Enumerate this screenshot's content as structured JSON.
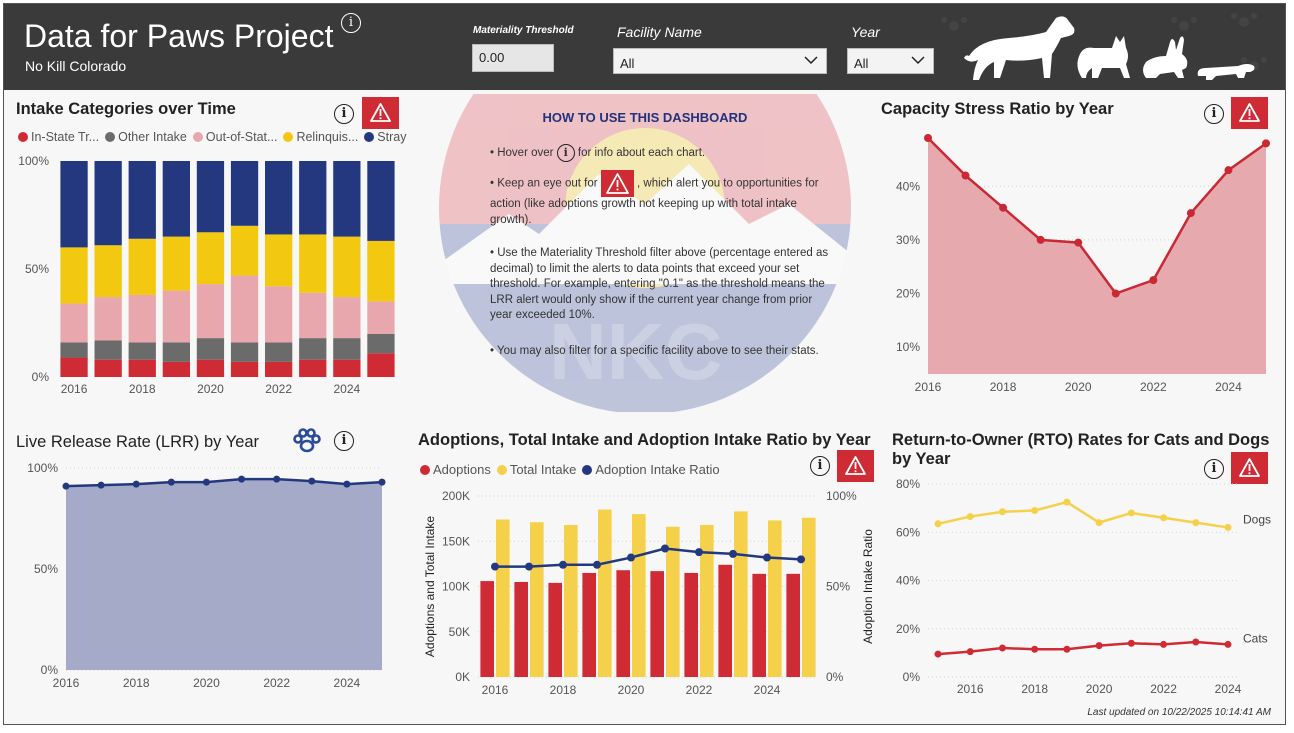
{
  "header": {
    "title": "Data for Paws Project",
    "subtitle": "No Kill Colorado",
    "info_icon": "info-icon",
    "filters": {
      "threshold_label": "Materiality Threshold",
      "threshold_value": "0.00",
      "facility_label": "Facility Name",
      "facility_value": "All",
      "year_label": "Year",
      "year_value": "All"
    }
  },
  "colors": {
    "red": "#cf2b34",
    "gray": "#6b6b6b",
    "pink": "#e8a7ad",
    "yellow": "#f2c811",
    "navy": "#23387f",
    "lrr_fill": "#a5aac9",
    "rto_yellow": "#f5d04a",
    "capacity_fill": "#e6a9ad"
  },
  "intake": {
    "title": "Intake Categories over Time",
    "legend": [
      "In-State Tr...",
      "Other Intake",
      "Out-of-Stat...",
      "Relinquis...",
      "Stray"
    ]
  },
  "capacity": {
    "title": "Capacity Stress Ratio by Year"
  },
  "lrr": {
    "title": "Live Release Rate (LRR) by Year"
  },
  "adoptions": {
    "title": "Adoptions, Total Intake and Adoption Intake Ratio by Year",
    "legend": [
      "Adoptions",
      "Total Intake",
      "Adoption Intake Ratio"
    ],
    "ylabel_left": "Adoptions and Total Intake",
    "ylabel_right": "Adoption Intake Ratio"
  },
  "rto": {
    "title_line1": "Return-to-Owner (RTO) Rates for Cats and Dogs",
    "title_line2": "by Year",
    "dogs_label": "Dogs",
    "cats_label": "Cats"
  },
  "howto": {
    "title": "HOW TO USE THIS DASHBOARD",
    "tip1_a": "• Hover over",
    "tip1_b": "for info about each chart.",
    "tip2_a": "• Keep an eye out for",
    "tip2_b": ", which alert you to opportunities for action (like adoptions growth not keeping up with total intake growth).",
    "tip3": "• Use the Materiality Threshold filter above (percentage entered as decimal) to limit the alerts to data points that exceed your set threshold. For example, entering \"0.1\" as the threshold means the LRR alert would only show if the current year change from prior year exceeded 10%.",
    "tip4": "• You may also filter for a specific facility above to see their stats."
  },
  "footer": {
    "updated": "Last updated on 10/22/2025 10:14:41 AM"
  },
  "chart_data": [
    {
      "id": "intake",
      "type": "bar",
      "stacked": "100%",
      "title": "Intake Categories over Time",
      "x": [
        2016,
        2017,
        2018,
        2019,
        2020,
        2021,
        2022,
        2023,
        2024,
        2025
      ],
      "x_ticks": [
        "2016",
        "2018",
        "2020",
        "2022",
        "2024"
      ],
      "y_ticks": [
        "0%",
        "50%",
        "100%"
      ],
      "ylim": [
        0,
        1
      ],
      "series": [
        {
          "name": "In-State Tr...",
          "color": "#cf2b34",
          "values": [
            0.09,
            0.08,
            0.08,
            0.07,
            0.08,
            0.07,
            0.07,
            0.08,
            0.08,
            0.11
          ]
        },
        {
          "name": "Other Intake",
          "color": "#6b6b6b",
          "values": [
            0.07,
            0.09,
            0.08,
            0.09,
            0.1,
            0.09,
            0.09,
            0.1,
            0.1,
            0.09
          ]
        },
        {
          "name": "Out-of-Stat...",
          "color": "#e8a7ad",
          "values": [
            0.18,
            0.2,
            0.22,
            0.24,
            0.25,
            0.31,
            0.26,
            0.21,
            0.19,
            0.15
          ]
        },
        {
          "name": "Relinquis...",
          "color": "#f2c811",
          "values": [
            0.26,
            0.24,
            0.26,
            0.25,
            0.24,
            0.23,
            0.24,
            0.27,
            0.28,
            0.28
          ]
        },
        {
          "name": "Stray",
          "color": "#23387f",
          "values": [
            0.4,
            0.39,
            0.36,
            0.35,
            0.33,
            0.3,
            0.34,
            0.34,
            0.35,
            0.37
          ]
        }
      ]
    },
    {
      "id": "capacity",
      "type": "area",
      "title": "Capacity Stress Ratio by Year",
      "x": [
        2016,
        2017,
        2018,
        2019,
        2020,
        2021,
        2022,
        2023,
        2024,
        2025
      ],
      "values": [
        0.49,
        0.42,
        0.36,
        0.3,
        0.295,
        0.2,
        0.225,
        0.35,
        0.43,
        0.48
      ],
      "x_ticks": [
        "2016",
        "2018",
        "2020",
        "2022",
        "2024"
      ],
      "y_ticks": [
        "10%",
        "20%",
        "30%",
        "40%"
      ],
      "ylim": [
        0.05,
        0.49
      ]
    },
    {
      "id": "lrr",
      "type": "area",
      "title": "Live Release Rate (LRR) by Year",
      "x": [
        2016,
        2017,
        2018,
        2019,
        2020,
        2021,
        2022,
        2023,
        2024,
        2025
      ],
      "values": [
        0.91,
        0.915,
        0.92,
        0.93,
        0.93,
        0.945,
        0.945,
        0.935,
        0.92,
        0.93
      ],
      "x_ticks": [
        "2016",
        "2018",
        "2020",
        "2022",
        "2024"
      ],
      "y_ticks": [
        "0%",
        "50%",
        "100%"
      ],
      "ylim": [
        0,
        1
      ]
    },
    {
      "id": "adoptions",
      "type": "bar",
      "title": "Adoptions, Total Intake and Adoption Intake Ratio by Year",
      "x": [
        2016,
        2017,
        2018,
        2019,
        2020,
        2021,
        2022,
        2023,
        2024,
        2025
      ],
      "series": [
        {
          "name": "Adoptions",
          "color": "#cf2b34",
          "values": [
            106000,
            105000,
            104000,
            115000,
            118000,
            117000,
            115000,
            124000,
            114000,
            114000
          ]
        },
        {
          "name": "Total Intake",
          "color": "#f5d04a",
          "values": [
            174000,
            171000,
            168000,
            185000,
            180000,
            166000,
            168000,
            183000,
            173000,
            176000
          ]
        },
        {
          "name": "Adoption Intake Ratio",
          "type": "line",
          "axis": "right",
          "color": "#23387f",
          "values": [
            0.61,
            0.61,
            0.62,
            0.62,
            0.66,
            0.71,
            0.69,
            0.68,
            0.66,
            0.65
          ]
        }
      ],
      "x_ticks": [
        "2016",
        "2018",
        "2020",
        "2022",
        "2024"
      ],
      "y_ticks_left": [
        "0K",
        "50K",
        "100K",
        "150K",
        "200K"
      ],
      "y_ticks_right": [
        "0%",
        "50%",
        "100%"
      ],
      "ylim_left": [
        0,
        200000
      ],
      "ylim_right": [
        0,
        1
      ],
      "xlabel": "",
      "ylabel": "Adoptions and Total Intake",
      "ylabel_right": "Adoption Intake Ratio"
    },
    {
      "id": "rto",
      "type": "line",
      "title": "Return-to-Owner (RTO) Rates for Cats and Dogs by Year",
      "x": [
        2015,
        2016,
        2017,
        2018,
        2019,
        2020,
        2021,
        2022,
        2023,
        2024
      ],
      "series": [
        {
          "name": "Dogs",
          "color": "#f5d04a",
          "values": [
            0.635,
            0.665,
            0.685,
            0.69,
            0.725,
            0.64,
            0.68,
            0.66,
            0.64,
            0.62
          ]
        },
        {
          "name": "Cats",
          "color": "#cf2b34",
          "values": [
            0.095,
            0.105,
            0.12,
            0.115,
            0.115,
            0.13,
            0.14,
            0.135,
            0.145,
            0.135
          ]
        }
      ],
      "x_ticks": [
        "2016",
        "2018",
        "2020",
        "2022",
        "2024"
      ],
      "y_ticks": [
        "0%",
        "20%",
        "40%",
        "60%",
        "80%"
      ],
      "ylim": [
        0,
        0.8
      ]
    }
  ]
}
